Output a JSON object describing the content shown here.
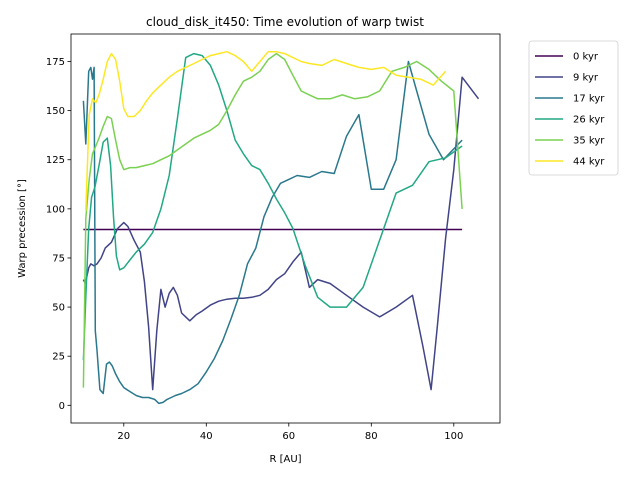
{
  "chart_data": {
    "type": "line",
    "title": "cloud_disk_it450: Time evolution of warp twist",
    "xlabel": "R [AU]",
    "ylabel": "Warp precession [°]",
    "xlim": [
      7.2,
      111.2
    ],
    "ylim": [
      -9.0,
      189.0
    ],
    "xticks": [
      20,
      40,
      60,
      80,
      100
    ],
    "yticks": [
      0,
      25,
      50,
      75,
      100,
      125,
      150,
      175
    ],
    "grid": false,
    "legend_position": "outside-top-right",
    "series": [
      {
        "name": "0 kyr",
        "color": "#440154",
        "x": [
          10.2,
          102
        ],
        "y": [
          89.5,
          89.5
        ]
      },
      {
        "name": "9 kyr",
        "color": "#414487",
        "x": [
          10.2,
          10.7,
          11.5,
          12.0,
          12.8,
          13.5,
          14.5,
          15.5,
          17.0,
          18.5,
          20.0,
          21.0,
          22.5,
          24.0,
          25.0,
          26.0,
          27.0,
          28.0,
          29.0,
          30.0,
          31.0,
          32.0,
          33.0,
          34.0,
          35.0,
          36.0,
          37.5,
          39.0,
          41.0,
          43.0,
          45.0,
          47.0,
          49.0,
          51.0,
          53.0,
          55.0,
          57.0,
          59.0,
          61.0,
          63.0,
          65.0,
          67.0,
          70.0,
          74.0,
          78.0,
          82.0,
          86.0,
          90.0,
          92.5,
          94.5,
          96.0,
          98.0,
          100.0,
          102.0,
          106.0
        ],
        "y": [
          64,
          62,
          70,
          72,
          71,
          72,
          75,
          80,
          83,
          90,
          93,
          91,
          84,
          78,
          63,
          40,
          8,
          38,
          59,
          50,
          57,
          60,
          56,
          47,
          45,
          43,
          46,
          48,
          51,
          53,
          54,
          54.5,
          54.5,
          55,
          56,
          59,
          64,
          67,
          73,
          78,
          60,
          64,
          62,
          56,
          50,
          45,
          50,
          56,
          30,
          8,
          40,
          85,
          120,
          167,
          156
        ]
      },
      {
        "name": "17 kyr",
        "color": "#2a788e",
        "x": [
          10.2,
          10.8,
          11.5,
          12.0,
          12.4,
          12.8,
          13.1,
          13.5,
          14.2,
          15.0,
          15.8,
          16.5,
          17.2,
          18.0,
          19.0,
          20.0,
          21.5,
          23.0,
          24.5,
          26.0,
          27.5,
          28.5,
          29.5,
          30.5,
          31.5,
          32.5,
          34.0,
          36.0,
          38.0,
          40.0,
          42.0,
          44.0,
          46.0,
          48.0,
          50.0,
          52.0,
          54.0,
          56.0,
          58.0,
          60.0,
          62.0,
          65.0,
          68.0,
          71.0,
          74.0,
          77.0,
          80.0,
          83.0,
          86.0,
          89.0,
          91.0,
          94.0,
          97.5,
          102.0
        ],
        "y": [
          155,
          133,
          170,
          172,
          166,
          172,
          38,
          28,
          8,
          6,
          21,
          22,
          20,
          16,
          12,
          9,
          7,
          5,
          4,
          4,
          3,
          1,
          1.5,
          3,
          4,
          5,
          6,
          8,
          11,
          17,
          24,
          33,
          44,
          56,
          72,
          80,
          96,
          106,
          113,
          115,
          117,
          116,
          119,
          118,
          137,
          148,
          110,
          110,
          125,
          175,
          160,
          138,
          125,
          135
        ]
      },
      {
        "name": "26 kyr",
        "color": "#22a884",
        "x": [
          10.2,
          10.8,
          11.5,
          12.2,
          13.0,
          14.0,
          15.0,
          16.0,
          16.8,
          17.5,
          18.2,
          19.0,
          20.0,
          21.5,
          23.0,
          25.0,
          27.0,
          29.0,
          31.0,
          33.0,
          35.0,
          37.0,
          39.0,
          41.0,
          43.0,
          45.0,
          47.0,
          49.0,
          51.0,
          53.0,
          55.0,
          57.0,
          59.0,
          61.0,
          64.0,
          67.0,
          70.0,
          74.0,
          78.0,
          82.0,
          86.0,
          90.0,
          94.0,
          98.0,
          102.0
        ],
        "y": [
          23,
          55,
          90,
          106,
          111,
          122,
          134,
          136,
          122,
          96,
          76,
          69,
          70,
          74,
          78,
          82,
          88,
          100,
          117,
          146,
          177,
          179,
          178,
          173,
          163,
          150,
          135,
          128,
          122,
          120,
          113,
          105,
          98,
          90,
          71,
          55,
          50,
          50,
          60,
          84,
          108,
          112,
          124,
          126,
          132
        ]
      },
      {
        "name": "35 kyr",
        "color": "#7ad151",
        "x": [
          10.2,
          10.8,
          11.6,
          12.4,
          13.2,
          14.0,
          15.0,
          16.0,
          17.0,
          18.0,
          19.0,
          20.0,
          21.5,
          23.0,
          25.0,
          27.0,
          29.0,
          31.0,
          33.0,
          35.0,
          37.0,
          39.0,
          41.0,
          43.0,
          45.0,
          47.0,
          49.0,
          51.0,
          53.0,
          55.0,
          57.0,
          59.0,
          61.0,
          63.0,
          65.0,
          67.0,
          70.0,
          73.0,
          76.0,
          79.0,
          82.0,
          85.0,
          88.0,
          91.0,
          94.0,
          97.0,
          100.0,
          102.0
        ],
        "y": [
          9,
          95,
          115,
          128,
          132,
          136,
          142,
          147,
          146,
          135,
          125,
          120,
          121,
          121,
          122,
          123,
          125,
          127,
          130,
          133,
          136,
          138,
          140,
          143,
          150,
          158,
          165,
          167,
          170,
          176,
          179,
          176,
          168,
          160,
          158,
          156,
          156,
          158,
          156,
          157,
          160,
          170,
          172,
          175,
          171,
          165,
          160,
          100
        ]
      },
      {
        "name": "44 kyr",
        "color": "#fde725",
        "x": [
          10.8,
          11.6,
          12.4,
          13.2,
          14.0,
          15.0,
          16.0,
          17.0,
          18.0,
          19.0,
          20.0,
          21.0,
          22.5,
          24.0,
          25.5,
          27.0,
          29.0,
          31.0,
          33.0,
          35.0,
          37.0,
          39.0,
          41.0,
          43.0,
          45.0,
          47.0,
          49.0,
          51.0,
          53.0,
          55.0,
          57.0,
          59.0,
          61.0,
          63.0,
          65.0,
          68.0,
          71.0,
          74.0,
          77.0,
          80.0,
          83.0,
          86.0,
          89.0,
          92.0,
          95.0,
          98.0
        ],
        "y": [
          99,
          148,
          156,
          154,
          158,
          166,
          175,
          179,
          176,
          165,
          151,
          147,
          147,
          150,
          155,
          159,
          163,
          167,
          170,
          172,
          174,
          176,
          178,
          179,
          180,
          178,
          175,
          170,
          175,
          180,
          180,
          179,
          177,
          175,
          174,
          173,
          176,
          174,
          172,
          171,
          172,
          168,
          167,
          166,
          163,
          170
        ]
      }
    ]
  }
}
